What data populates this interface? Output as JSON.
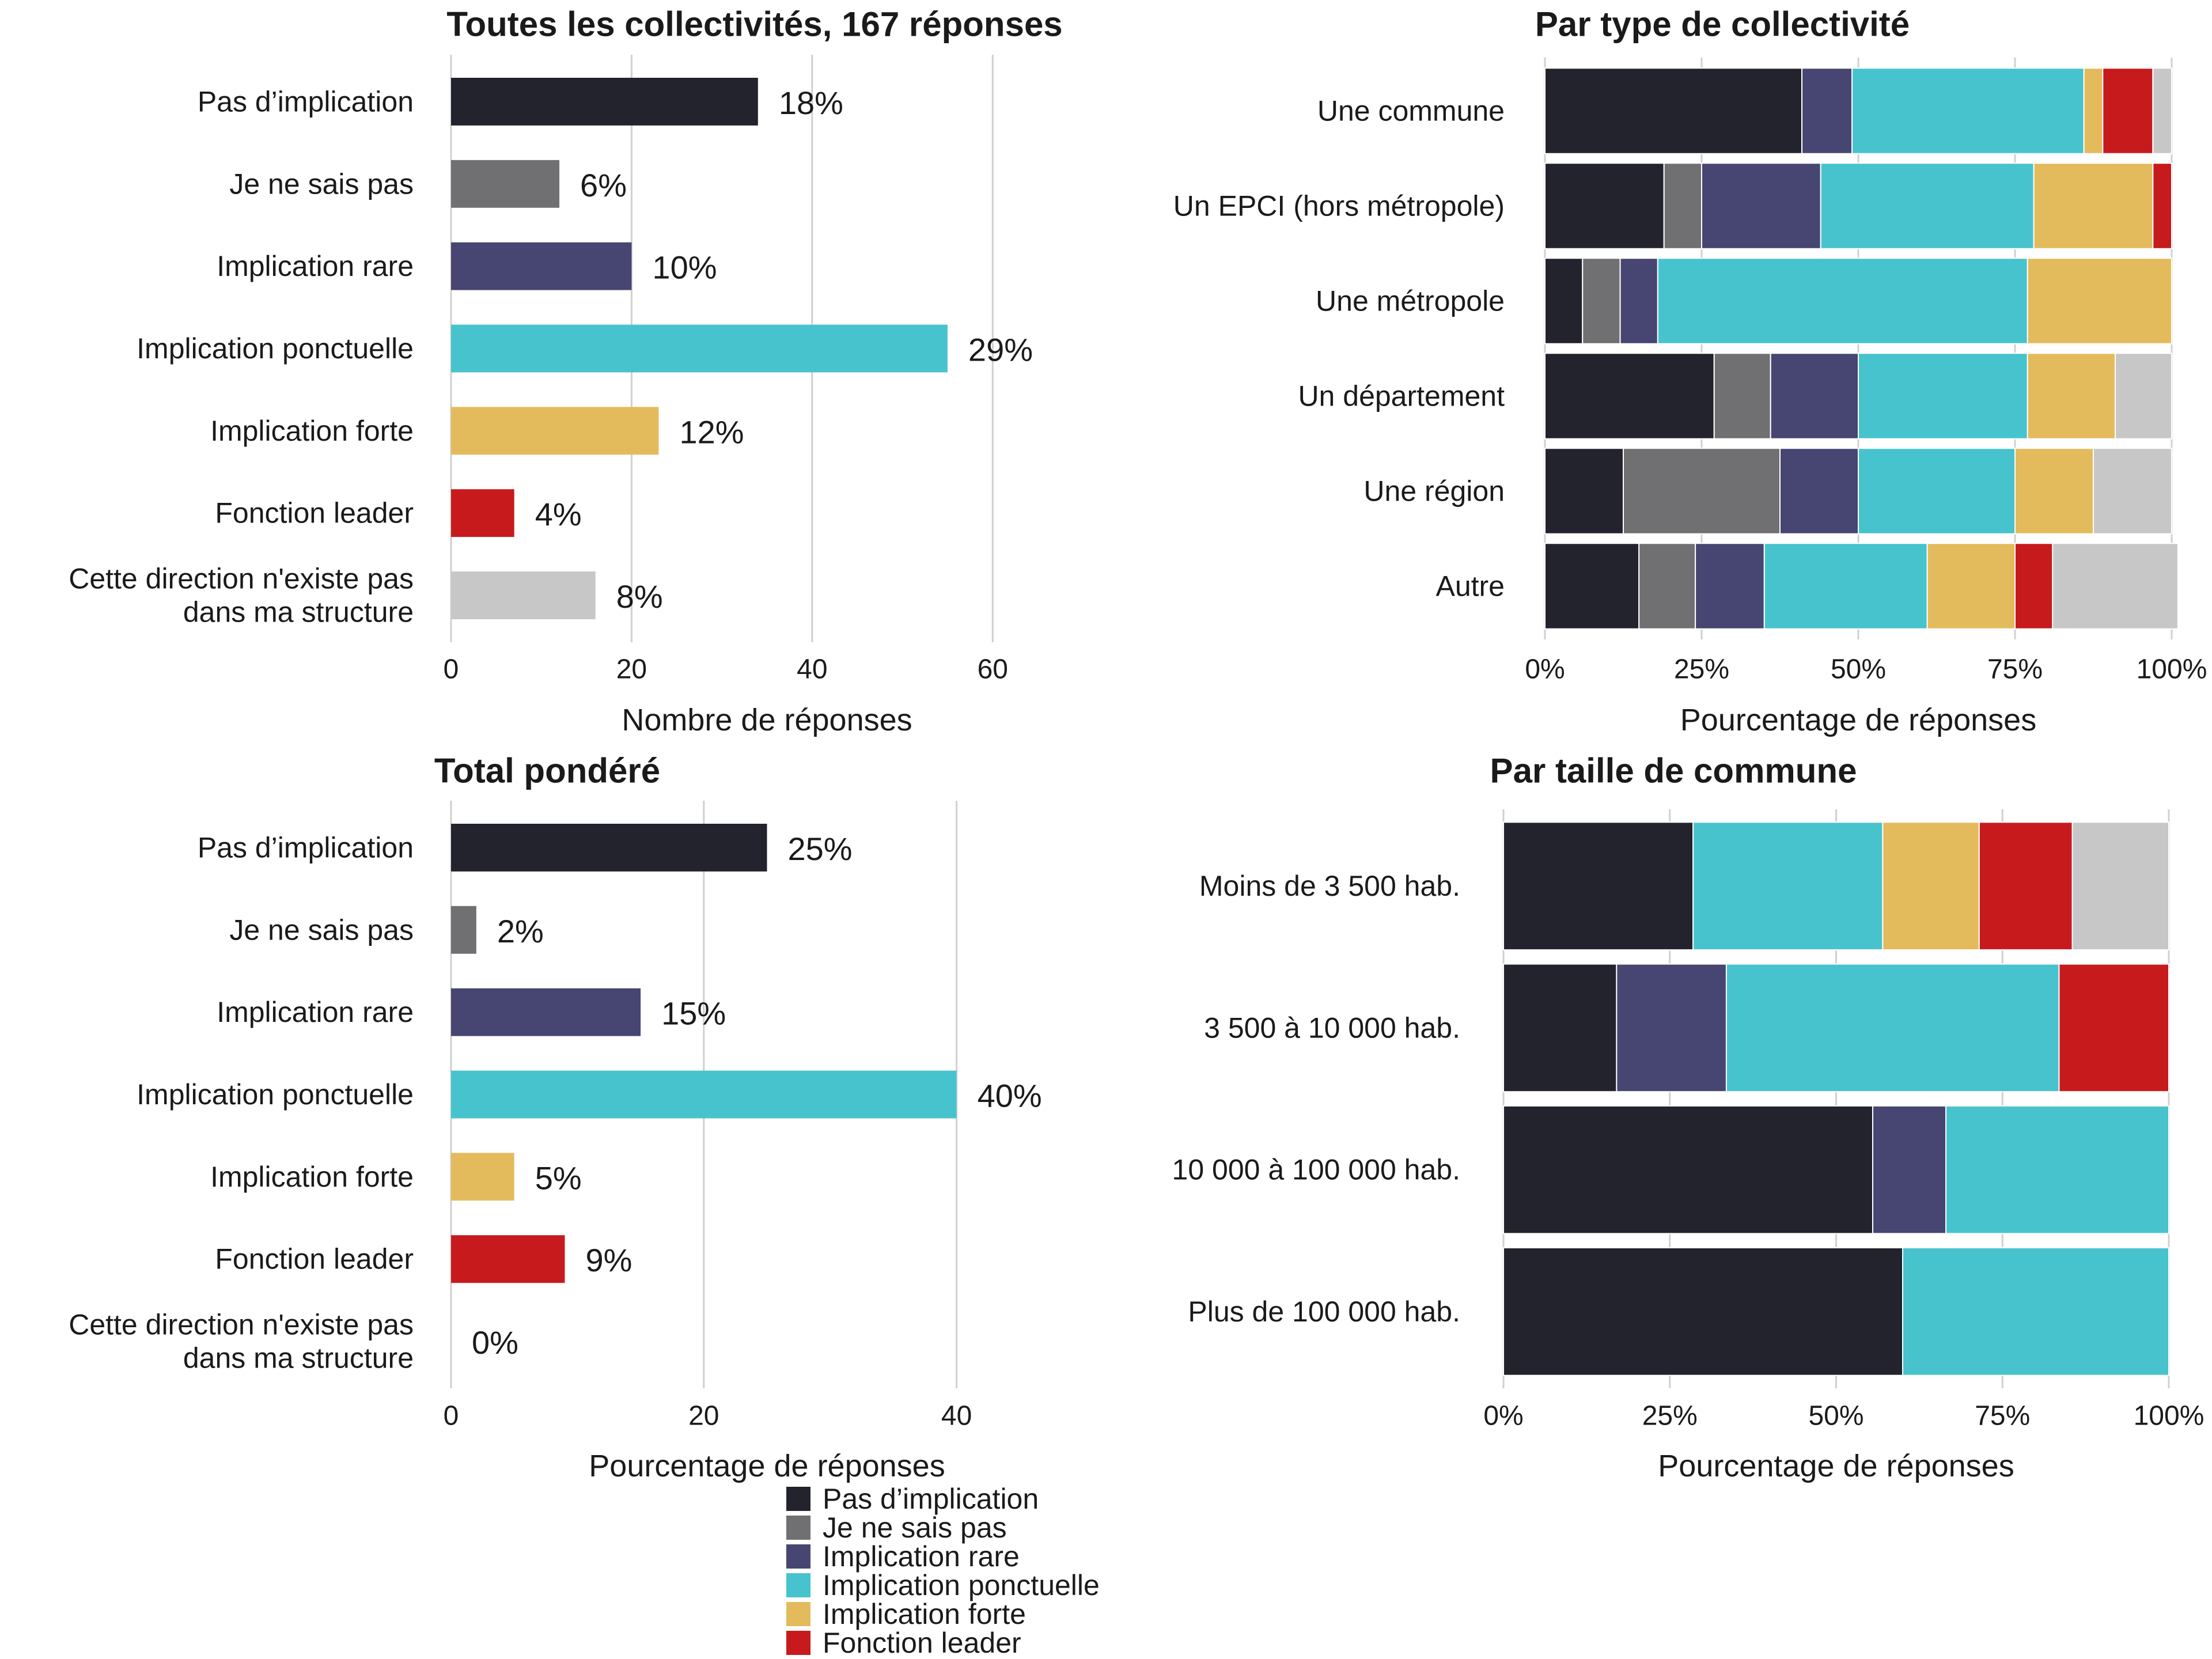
{
  "chart_data": [
    {
      "type": "bar",
      "orientation": "horizontal",
      "title": "Toutes les collectivités, 167 réponses",
      "xlabel": "Nombre de réponses",
      "ylabel": "",
      "xlim": [
        0,
        70
      ],
      "xticks": [
        0,
        20,
        40,
        60
      ],
      "tick_labels": [
        "0",
        "20",
        "40",
        "60"
      ],
      "grid": true,
      "categories": [
        "Pas d’implication",
        "Je ne sais pas",
        "Implication rare",
        "Implication ponctuelle",
        "Implication forte",
        "Fonction leader",
        "Cette direction n'existe pas\ndans ma structure"
      ],
      "values": [
        34,
        12,
        20,
        55,
        23,
        7,
        16
      ],
      "data_labels": [
        "18%",
        "6%",
        "10%",
        "29%",
        "12%",
        "4%",
        "8%"
      ]
    },
    {
      "type": "bar",
      "orientation": "horizontal",
      "stacked": true,
      "title": "Par type de collectivité",
      "xlabel": "Pourcentage de réponses",
      "ylabel": "",
      "xlim": [
        0,
        100
      ],
      "xticks": [
        0,
        25,
        50,
        75,
        100
      ],
      "tick_labels": [
        "0%",
        "25%",
        "50%",
        "75%",
        "100%"
      ],
      "grid": true,
      "categories": [
        "Une commune",
        "Un EPCI (hors métropole)",
        "Une métropole",
        "Un département",
        "Une région",
        "Autre"
      ],
      "series": [
        {
          "name": "Pas d’implication",
          "values": [
            41,
            19,
            6,
            27,
            12.5,
            15
          ]
        },
        {
          "name": "Je ne sais pas",
          "values": [
            0,
            6,
            6,
            9,
            25,
            9
          ]
        },
        {
          "name": "Implication rare",
          "values": [
            8,
            19,
            6,
            14,
            12.5,
            11
          ]
        },
        {
          "name": "Implication ponctuelle",
          "values": [
            37,
            34,
            59,
            27,
            25,
            26
          ]
        },
        {
          "name": "Implication forte",
          "values": [
            3,
            19,
            23,
            14,
            12.5,
            14
          ]
        },
        {
          "name": "Fonction leader",
          "values": [
            8,
            3,
            0,
            0,
            0,
            6
          ]
        },
        {
          "name": "Cette direction n'existe pas dans ma structure",
          "values": [
            3,
            0,
            0,
            9,
            12.5,
            20
          ]
        }
      ]
    },
    {
      "type": "bar",
      "orientation": "horizontal",
      "title": "Total pondéré",
      "xlabel": "Pourcentage de réponses",
      "ylabel": "",
      "xlim": [
        0,
        50
      ],
      "xticks": [
        0,
        20,
        40
      ],
      "tick_labels": [
        "0",
        "20",
        "40"
      ],
      "grid": true,
      "categories": [
        "Pas d’implication",
        "Je ne sais pas",
        "Implication rare",
        "Implication ponctuelle",
        "Implication forte",
        "Fonction leader",
        "Cette direction n'existe pas\ndans ma structure"
      ],
      "values": [
        25,
        2,
        15,
        40,
        5,
        9,
        0
      ],
      "data_labels": [
        "25%",
        "2%",
        "15%",
        "40%",
        "5%",
        "9%",
        "0%"
      ]
    },
    {
      "type": "bar",
      "orientation": "horizontal",
      "stacked": true,
      "title": "Par taille de commune",
      "xlabel": "Pourcentage de réponses",
      "ylabel": "",
      "xlim": [
        0,
        100
      ],
      "xticks": [
        0,
        25,
        50,
        75,
        100
      ],
      "tick_labels": [
        "0%",
        "25%",
        "50%",
        "75%",
        "100%"
      ],
      "grid": true,
      "categories": [
        "Moins de 3 500 hab.",
        "3 500 à 10 000 hab.",
        "10 000 à 100 000 hab.",
        "Plus de 100 000 hab."
      ],
      "series": [
        {
          "name": "Pas d’implication",
          "values": [
            28.5,
            17,
            55.5,
            60
          ]
        },
        {
          "name": "Je ne sais pas",
          "values": [
            0,
            0,
            0,
            0
          ]
        },
        {
          "name": "Implication rare",
          "values": [
            0,
            16.5,
            11,
            0
          ]
        },
        {
          "name": "Implication ponctuelle",
          "values": [
            28.5,
            50,
            33.5,
            40
          ]
        },
        {
          "name": "Implication forte",
          "values": [
            14.5,
            0,
            0,
            0
          ]
        },
        {
          "name": "Fonction leader",
          "values": [
            14,
            16.5,
            0,
            0
          ]
        },
        {
          "name": "Cette direction n'existe pas dans ma structure",
          "values": [
            14.5,
            0,
            0,
            0
          ]
        }
      ]
    }
  ],
  "legend": {
    "placement": "bottom",
    "items": [
      {
        "label": "Pas d’implication",
        "color": "#23232d"
      },
      {
        "label": "Je ne sais pas",
        "color": "#707073"
      },
      {
        "label": "Implication rare",
        "color": "#474672"
      },
      {
        "label": "Implication ponctuelle",
        "color": "#47c3ce"
      },
      {
        "label": "Implication forte",
        "color": "#e4bb5c"
      },
      {
        "label": "Fonction leader",
        "color": "#c71a1d"
      }
    ]
  },
  "colors": [
    "#23232d",
    "#707073",
    "#474672",
    "#47c3ce",
    "#e4bb5c",
    "#c71a1d",
    "#c7c7c7"
  ]
}
